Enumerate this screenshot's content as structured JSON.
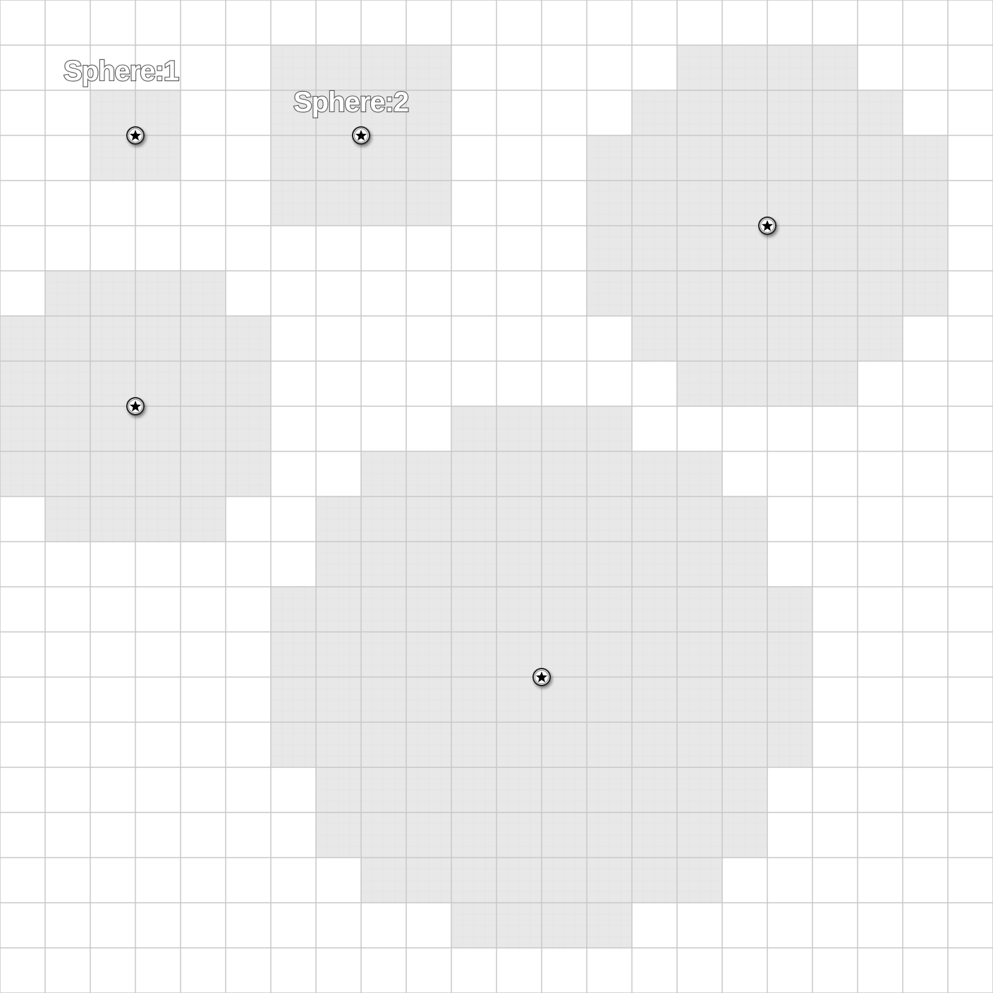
{
  "map": {
    "background": "#ffffff",
    "grid_color": "#c8c8c8",
    "fine_grid_color": "#dddddd",
    "area_fill": "#e8e8e8",
    "marker_icon": "star-token-icon",
    "spheres": [
      {
        "id": "sphere-1",
        "label": "Sphere:1",
        "center_cell": [
          3,
          3
        ],
        "radius": 1
      },
      {
        "id": "sphere-2",
        "label": "Sphere:2",
        "center_cell": [
          8,
          3
        ],
        "radius": 2
      },
      {
        "id": "sphere-3",
        "label": "",
        "center_cell": [
          17,
          5
        ],
        "radius": 4
      },
      {
        "id": "sphere-4",
        "label": "",
        "center_cell": [
          3,
          9
        ],
        "radius": 3
      },
      {
        "id": "sphere-5",
        "label": "",
        "center_cell": [
          12,
          15
        ],
        "radius": 6
      }
    ]
  }
}
